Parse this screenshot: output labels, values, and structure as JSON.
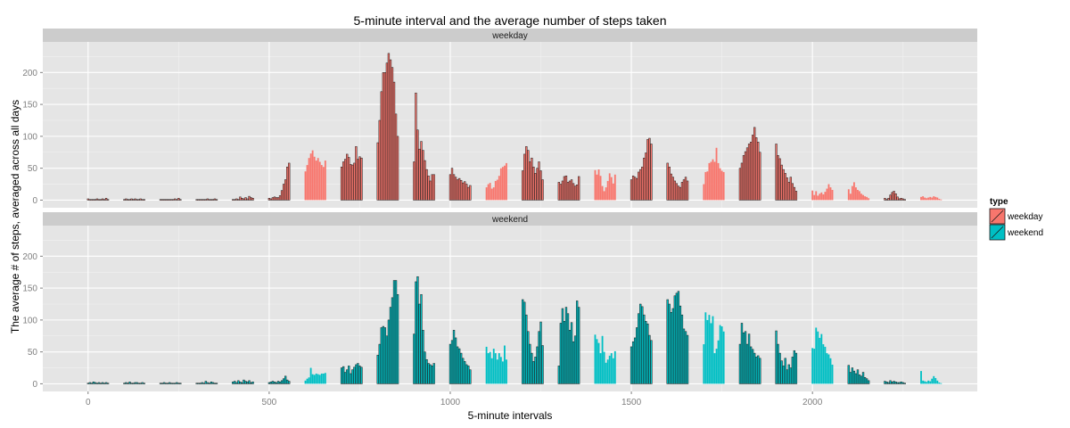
{
  "chart_data": {
    "type": "bar",
    "title": "5-minute interval and the average number of steps taken",
    "xlabel": "5-minute intervals",
    "ylabel": "The average # of steps, averaged across all days",
    "xlim": [
      -125,
      2455
    ],
    "ylim": [
      -12,
      248
    ],
    "x_ticks": [
      0,
      500,
      1000,
      1500,
      2000
    ],
    "y_ticks": [
      0,
      50,
      100,
      150,
      200
    ],
    "grid": true,
    "legend": {
      "title": "type",
      "position": "right",
      "entries": [
        "weekday",
        "weekend"
      ]
    },
    "colors": {
      "weekday": "#f8766d",
      "weekend": "#00bfc4",
      "bar_outline": "#1a1a1a",
      "panel_bg": "#e5e5e5",
      "strip_bg": "#cccccc"
    },
    "panels": [
      {
        "label": "weekday",
        "series": "weekday",
        "x": [
          0,
          5,
          10,
          15,
          20,
          25,
          30,
          35,
          40,
          45,
          50,
          55,
          100,
          105,
          110,
          115,
          120,
          125,
          130,
          135,
          140,
          145,
          150,
          155,
          200,
          205,
          210,
          215,
          220,
          225,
          230,
          235,
          240,
          245,
          250,
          255,
          300,
          305,
          310,
          315,
          320,
          325,
          330,
          335,
          340,
          345,
          350,
          355,
          400,
          405,
          410,
          415,
          420,
          425,
          430,
          435,
          440,
          445,
          450,
          455,
          500,
          505,
          510,
          515,
          520,
          525,
          530,
          535,
          540,
          545,
          550,
          555,
          600,
          605,
          610,
          615,
          620,
          625,
          630,
          635,
          640,
          645,
          650,
          655,
          700,
          705,
          710,
          715,
          720,
          725,
          730,
          735,
          740,
          745,
          750,
          755,
          800,
          805,
          810,
          815,
          820,
          825,
          830,
          835,
          840,
          845,
          850,
          855,
          900,
          905,
          910,
          915,
          920,
          925,
          930,
          935,
          940,
          945,
          950,
          955,
          1000,
          1005,
          1010,
          1015,
          1020,
          1025,
          1030,
          1035,
          1040,
          1045,
          1050,
          1055,
          1100,
          1105,
          1110,
          1115,
          1120,
          1125,
          1130,
          1135,
          1140,
          1145,
          1150,
          1155,
          1200,
          1205,
          1210,
          1215,
          1220,
          1225,
          1230,
          1235,
          1240,
          1245,
          1250,
          1255,
          1300,
          1305,
          1310,
          1315,
          1320,
          1325,
          1330,
          1335,
          1340,
          1345,
          1350,
          1355,
          1400,
          1405,
          1410,
          1415,
          1420,
          1425,
          1430,
          1435,
          1440,
          1445,
          1450,
          1455,
          1500,
          1505,
          1510,
          1515,
          1520,
          1525,
          1530,
          1535,
          1540,
          1545,
          1550,
          1555,
          1600,
          1605,
          1610,
          1615,
          1620,
          1625,
          1630,
          1635,
          1640,
          1645,
          1650,
          1655,
          1700,
          1705,
          1710,
          1715,
          1720,
          1725,
          1730,
          1735,
          1740,
          1745,
          1750,
          1755,
          1800,
          1805,
          1810,
          1815,
          1820,
          1825,
          1830,
          1835,
          1840,
          1845,
          1850,
          1855,
          1900,
          1905,
          1910,
          1915,
          1920,
          1925,
          1930,
          1935,
          1940,
          1945,
          1950,
          1955,
          2000,
          2005,
          2010,
          2015,
          2020,
          2025,
          2030,
          2035,
          2040,
          2045,
          2050,
          2055,
          2100,
          2105,
          2110,
          2115,
          2120,
          2125,
          2130,
          2135,
          2140,
          2145,
          2150,
          2155,
          2200,
          2205,
          2210,
          2215,
          2220,
          2225,
          2230,
          2235,
          2240,
          2245,
          2250,
          2255,
          2300,
          2305,
          2310,
          2315,
          2320,
          2325,
          2330,
          2335,
          2340,
          2345,
          2350,
          2355
        ],
        "values": [
          2,
          1,
          1,
          1,
          1,
          2,
          1,
          1,
          2,
          1,
          3,
          1,
          1,
          2,
          1,
          1,
          2,
          1,
          2,
          1,
          1,
          2,
          1,
          1,
          1,
          1,
          1,
          1,
          1,
          1,
          1,
          1,
          2,
          1,
          3,
          1,
          1,
          1,
          1,
          1,
          1,
          1,
          2,
          1,
          1,
          1,
          2,
          1,
          1,
          1,
          2,
          1,
          5,
          3,
          2,
          4,
          2,
          6,
          4,
          3,
          3,
          2,
          4,
          5,
          4,
          4,
          7,
          15,
          25,
          32,
          52,
          58,
          45,
          55,
          66,
          73,
          78,
          68,
          62,
          66,
          60,
          55,
          52,
          62,
          52,
          60,
          64,
          72,
          67,
          56,
          55,
          58,
          84,
          64,
          68,
          66,
          90,
          125,
          170,
          200,
          200,
          215,
          230,
          220,
          208,
          185,
          135,
          100,
          60,
          168,
          110,
          80,
          92,
          78,
          62,
          48,
          38,
          30,
          40,
          40,
          40,
          50,
          40,
          36,
          32,
          34,
          31,
          27,
          29,
          25,
          20,
          23,
          20,
          25,
          27,
          18,
          20,
          30,
          32,
          38,
          50,
          52,
          54,
          58,
          46,
          72,
          84,
          78,
          60,
          66,
          52,
          42,
          50,
          60,
          46,
          32,
          28,
          25,
          30,
          37,
          38,
          28,
          30,
          32,
          26,
          22,
          24,
          37,
          47,
          40,
          48,
          38,
          22,
          14,
          20,
          30,
          42,
          36,
          26,
          40,
          32,
          38,
          36,
          34,
          44,
          48,
          52,
          66,
          74,
          95,
          97,
          88,
          58,
          52,
          41,
          36,
          30,
          26,
          22,
          20,
          28,
          32,
          36,
          30,
          25,
          44,
          45,
          58,
          60,
          64,
          60,
          82,
          58,
          50,
          46,
          44,
          50,
          58,
          70,
          76,
          82,
          88,
          91,
          102,
          114,
          98,
          91,
          75,
          88,
          70,
          65,
          55,
          48,
          42,
          35,
          28,
          36,
          26,
          20,
          14,
          15,
          8,
          14,
          7,
          10,
          12,
          9,
          13,
          18,
          25,
          20,
          16,
          17,
          10,
          22,
          28,
          20,
          16,
          14,
          10,
          8,
          6,
          5,
          3,
          3,
          1,
          3,
          8,
          12,
          14,
          10,
          5,
          2,
          3,
          2,
          1,
          5,
          6,
          4,
          3,
          4,
          5,
          4,
          6,
          5,
          4,
          2,
          1
        ]
      },
      {
        "label": "weekend",
        "series": "weekend",
        "x": [
          0,
          5,
          10,
          15,
          20,
          25,
          30,
          35,
          40,
          45,
          50,
          55,
          100,
          105,
          110,
          115,
          120,
          125,
          130,
          135,
          140,
          145,
          150,
          155,
          200,
          205,
          210,
          215,
          220,
          225,
          230,
          235,
          240,
          245,
          250,
          255,
          300,
          305,
          310,
          315,
          320,
          325,
          330,
          335,
          340,
          345,
          350,
          355,
          400,
          405,
          410,
          415,
          420,
          425,
          430,
          435,
          440,
          445,
          450,
          455,
          500,
          505,
          510,
          515,
          520,
          525,
          530,
          535,
          540,
          545,
          550,
          555,
          600,
          605,
          610,
          615,
          620,
          625,
          630,
          635,
          640,
          645,
          650,
          655,
          700,
          705,
          710,
          715,
          720,
          725,
          730,
          735,
          740,
          745,
          750,
          755,
          800,
          805,
          810,
          815,
          820,
          825,
          830,
          835,
          840,
          845,
          850,
          855,
          900,
          905,
          910,
          915,
          920,
          925,
          930,
          935,
          940,
          945,
          950,
          955,
          1000,
          1005,
          1010,
          1015,
          1020,
          1025,
          1030,
          1035,
          1040,
          1045,
          1050,
          1055,
          1100,
          1105,
          1110,
          1115,
          1120,
          1125,
          1130,
          1135,
          1140,
          1145,
          1150,
          1155,
          1200,
          1205,
          1210,
          1215,
          1220,
          1225,
          1230,
          1235,
          1240,
          1245,
          1250,
          1255,
          1300,
          1305,
          1310,
          1315,
          1320,
          1325,
          1330,
          1335,
          1340,
          1345,
          1350,
          1355,
          1400,
          1405,
          1410,
          1415,
          1420,
          1425,
          1430,
          1435,
          1440,
          1445,
          1450,
          1455,
          1500,
          1505,
          1510,
          1515,
          1520,
          1525,
          1530,
          1535,
          1540,
          1545,
          1550,
          1555,
          1600,
          1605,
          1610,
          1615,
          1620,
          1625,
          1630,
          1635,
          1640,
          1645,
          1650,
          1655,
          1700,
          1705,
          1710,
          1715,
          1720,
          1725,
          1730,
          1735,
          1740,
          1745,
          1750,
          1755,
          1800,
          1805,
          1810,
          1815,
          1820,
          1825,
          1830,
          1835,
          1840,
          1845,
          1850,
          1855,
          1900,
          1905,
          1910,
          1915,
          1920,
          1925,
          1930,
          1935,
          1940,
          1945,
          1950,
          1955,
          2000,
          2005,
          2010,
          2015,
          2020,
          2025,
          2030,
          2035,
          2040,
          2045,
          2050,
          2055,
          2100,
          2105,
          2110,
          2115,
          2120,
          2125,
          2130,
          2135,
          2140,
          2145,
          2150,
          2155,
          2200,
          2205,
          2210,
          2215,
          2220,
          2225,
          2230,
          2235,
          2240,
          2245,
          2250,
          2255,
          2300,
          2305,
          2310,
          2315,
          2320,
          2325,
          2330,
          2335,
          2340,
          2345,
          2350,
          2355
        ],
        "values": [
          1,
          2,
          1,
          3,
          2,
          1,
          2,
          1,
          2,
          1,
          2,
          1,
          1,
          2,
          1,
          3,
          1,
          1,
          2,
          2,
          1,
          1,
          2,
          1,
          1,
          1,
          2,
          1,
          1,
          2,
          1,
          1,
          1,
          2,
          1,
          1,
          1,
          1,
          1,
          2,
          1,
          4,
          2,
          1,
          3,
          2,
          1,
          1,
          3,
          4,
          2,
          5,
          3,
          2,
          6,
          4,
          3,
          5,
          2,
          3,
          2,
          3,
          4,
          3,
          2,
          4,
          3,
          5,
          8,
          12,
          6,
          4,
          5,
          8,
          10,
          25,
          15,
          14,
          16,
          15,
          14,
          16,
          16,
          17,
          25,
          27,
          18,
          22,
          28,
          16,
          22,
          26,
          30,
          32,
          28,
          26,
          45,
          62,
          88,
          90,
          88,
          75,
          100,
          120,
          135,
          162,
          162,
          140,
          78,
          160,
          168,
          125,
          140,
          84,
          50,
          38,
          32,
          30,
          28,
          32,
          62,
          68,
          84,
          72,
          58,
          55,
          48,
          40,
          35,
          30,
          28,
          22,
          58,
          48,
          50,
          40,
          55,
          48,
          38,
          48,
          42,
          35,
          60,
          38,
          132,
          128,
          108,
          82,
          62,
          48,
          35,
          42,
          58,
          82,
          97,
          60,
          28,
          95,
          118,
          98,
          120,
          110,
          84,
          96,
          66,
          75,
          130,
          120,
          77,
          70,
          64,
          48,
          75,
          50,
          33,
          38,
          44,
          48,
          40,
          51,
          58,
          66,
          72,
          88,
          110,
          125,
          121,
          108,
          98,
          94,
          76,
          68,
          132,
          125,
          112,
          118,
          138,
          142,
          145,
          122,
          108,
          86,
          82,
          76,
          62,
          112,
          100,
          108,
          95,
          106,
          48,
          55,
          68,
          92,
          90,
          82,
          62,
          95,
          80,
          82,
          62,
          78,
          58,
          54,
          48,
          42,
          44,
          40,
          83,
          62,
          48,
          36,
          28,
          40,
          22,
          30,
          25,
          42,
          52,
          48,
          56,
          55,
          88,
          82,
          72,
          78,
          62,
          58,
          48,
          46,
          40,
          30,
          29,
          18,
          25,
          20,
          16,
          22,
          14,
          12,
          18,
          10,
          8,
          5,
          4,
          3,
          2,
          5,
          3,
          4,
          3,
          2,
          2,
          3,
          2,
          1,
          20,
          5,
          4,
          3,
          5,
          4,
          8,
          12,
          9,
          5,
          2,
          1
        ]
      }
    ]
  }
}
